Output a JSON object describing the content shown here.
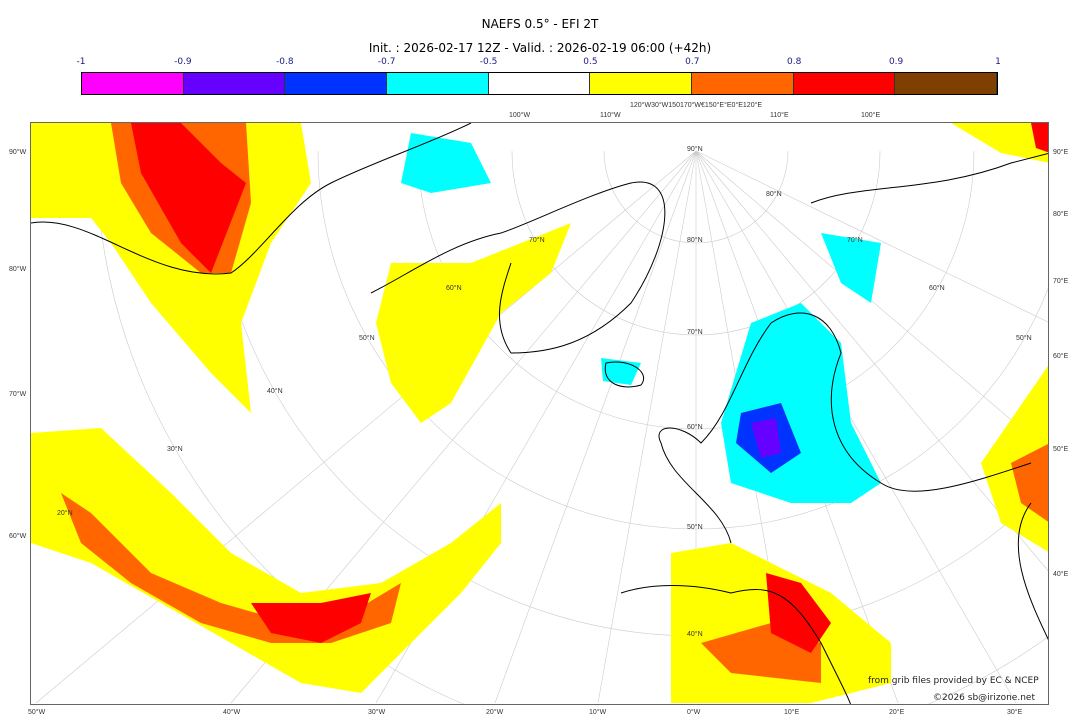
{
  "title": "NAEFS 0.5° - EFI 2T",
  "subtitle": "Init. : 2026-02-17 12Z - Valid. : 2026-02-19 06:00 (+42h)",
  "colorbar": {
    "ticks": [
      "-1",
      "-0.9",
      "-0.8",
      "-0.7",
      "-0.5",
      "0.5",
      "0.7",
      "0.8",
      "0.9",
      "1"
    ],
    "colors": [
      "#ff00ff",
      "#6600ff",
      "#0033ff",
      "#00ffff",
      "#ffffff",
      "#ffff00",
      "#ff6600",
      "#ff0000",
      "#7f3f00"
    ]
  },
  "axes": {
    "left": [
      "90°W",
      "80°W",
      "70°W",
      "60°W"
    ],
    "right": [
      "90°E",
      "80°E",
      "70°E",
      "60°E",
      "50°E",
      "40°E"
    ],
    "bottom": [
      "50°W",
      "40°W",
      "30°W",
      "20°W",
      "10°W",
      "0°W",
      "10°E",
      "20°E",
      "30°E"
    ],
    "top": [
      "100°W",
      "110°W",
      "120°W30°W150170°W€150°E°E0°E120°E",
      "110°E",
      "100°E"
    ],
    "lat_labels": [
      "90°N",
      "80°N",
      "70°N",
      "60°N",
      "50°N",
      "40°N",
      "70°N",
      "60°N",
      "50°N",
      "40°N",
      "30°N",
      "20°N",
      "80°N",
      "70°N",
      "60°N",
      "50°N"
    ]
  },
  "credits": {
    "source": "from grib files provided by EC & NCEP",
    "copyright": "©2026 sb@irizone.net"
  }
}
